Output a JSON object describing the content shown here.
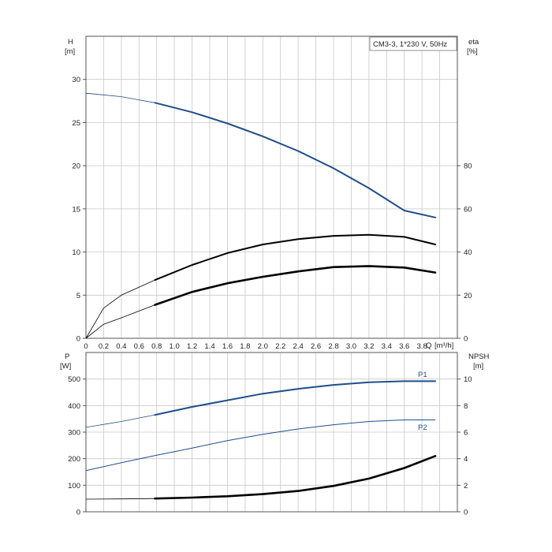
{
  "chart_data": [
    {
      "type": "line",
      "title": "CM3-3, 1*230 V, 50Hz",
      "xlabel": "Q [m³/h]",
      "x_axis_label": "Q",
      "x_unit": "[m³/h]",
      "xlim": [
        0,
        4.2
      ],
      "x_ticks": [
        "0",
        "0.2",
        "0.4",
        "0.6",
        "0.8",
        "1.0",
        "1.2",
        "1.4",
        "1.6",
        "1.8",
        "2.0",
        "2.2",
        "2.4",
        "2.6",
        "2.8",
        "3.0",
        "3.2",
        "3.4",
        "3.6",
        "3.8"
      ],
      "x_tick_values": [
        0,
        0.2,
        0.4,
        0.6,
        0.8,
        1.0,
        1.2,
        1.4,
        1.6,
        1.8,
        2.0,
        2.2,
        2.4,
        2.6,
        2.8,
        3.0,
        3.2,
        3.4,
        3.6,
        3.8
      ],
      "ylabel_left": "H",
      "ylabel_left_unit": "[m]",
      "ylim_left": [
        0,
        35
      ],
      "y_ticks_left": [
        0,
        5,
        10,
        15,
        20,
        25,
        30
      ],
      "ylabel_right": "eta",
      "ylabel_right_unit": "[%]",
      "ylim_right": [
        0,
        140
      ],
      "y_ticks_right": [
        0,
        20,
        40,
        60,
        80
      ],
      "grid": true,
      "series": [
        {
          "axis": "left",
          "color": "#1f4e8c",
          "thin_until": 0.78,
          "x": [
            0,
            0.4,
            0.78,
            1.2,
            1.6,
            2.0,
            2.4,
            2.8,
            3.2,
            3.6,
            3.95
          ],
          "values": [
            28.4,
            28.0,
            27.3,
            26.2,
            24.9,
            23.4,
            21.7,
            19.7,
            17.4,
            14.8,
            14.0
          ]
        },
        {
          "axis": "right",
          "color": "#000000",
          "thin_until": 0.78,
          "x": [
            0,
            0.2,
            0.4,
            0.78,
            1.2,
            1.6,
            2.0,
            2.4,
            2.8,
            3.2,
            3.6,
            3.95
          ],
          "values": [
            0,
            14,
            20,
            27,
            34,
            39.5,
            43.5,
            46,
            47.5,
            48,
            47,
            43.5
          ]
        },
        {
          "axis": "right",
          "color": "#000000",
          "thin_until": 0.78,
          "thick": true,
          "x": [
            0,
            0.2,
            0.4,
            0.78,
            1.2,
            1.6,
            2.0,
            2.4,
            2.8,
            3.2,
            3.6,
            3.95
          ],
          "values": [
            0,
            6.5,
            9.5,
            15.5,
            21.5,
            25.5,
            28.5,
            31,
            33,
            33.5,
            32.8,
            30.5
          ]
        }
      ]
    },
    {
      "type": "line",
      "xlim": [
        0,
        4.2
      ],
      "ylabel_left": "P",
      "ylabel_left_unit": "[W]",
      "ylim_left": [
        0,
        600
      ],
      "y_ticks_left": [
        0,
        100,
        200,
        300,
        400,
        500
      ],
      "ylabel_right": "NPSH",
      "ylabel_right_unit": "[m]",
      "ylim_right": [
        0,
        12
      ],
      "y_ticks_right": [
        0,
        2,
        4,
        6,
        8,
        10
      ],
      "grid": true,
      "series": [
        {
          "name": "P1",
          "axis": "left",
          "color": "#1f4e8c",
          "thin_until": 0.78,
          "x": [
            0,
            0.4,
            0.78,
            1.2,
            1.6,
            2.0,
            2.4,
            2.8,
            3.2,
            3.6,
            3.95
          ],
          "values": [
            318,
            340,
            365,
            395,
            420,
            445,
            463,
            478,
            488,
            492,
            492
          ]
        },
        {
          "name": "P2",
          "axis": "left",
          "color": "#1f4e8c",
          "thin": true,
          "x": [
            0,
            0.4,
            0.8,
            1.2,
            1.6,
            2.0,
            2.4,
            2.8,
            3.2,
            3.6,
            3.95
          ],
          "values": [
            155,
            185,
            213,
            240,
            268,
            292,
            312,
            328,
            340,
            346,
            346
          ]
        },
        {
          "axis": "right",
          "color": "#000000",
          "thin_until": 0.78,
          "thick": true,
          "x": [
            0,
            0.4,
            0.78,
            1.2,
            1.6,
            2.0,
            2.4,
            2.8,
            3.2,
            3.6,
            3.95
          ],
          "values": [
            0.95,
            0.97,
            1.0,
            1.07,
            1.17,
            1.33,
            1.57,
            1.95,
            2.5,
            3.3,
            4.2
          ]
        }
      ]
    }
  ]
}
